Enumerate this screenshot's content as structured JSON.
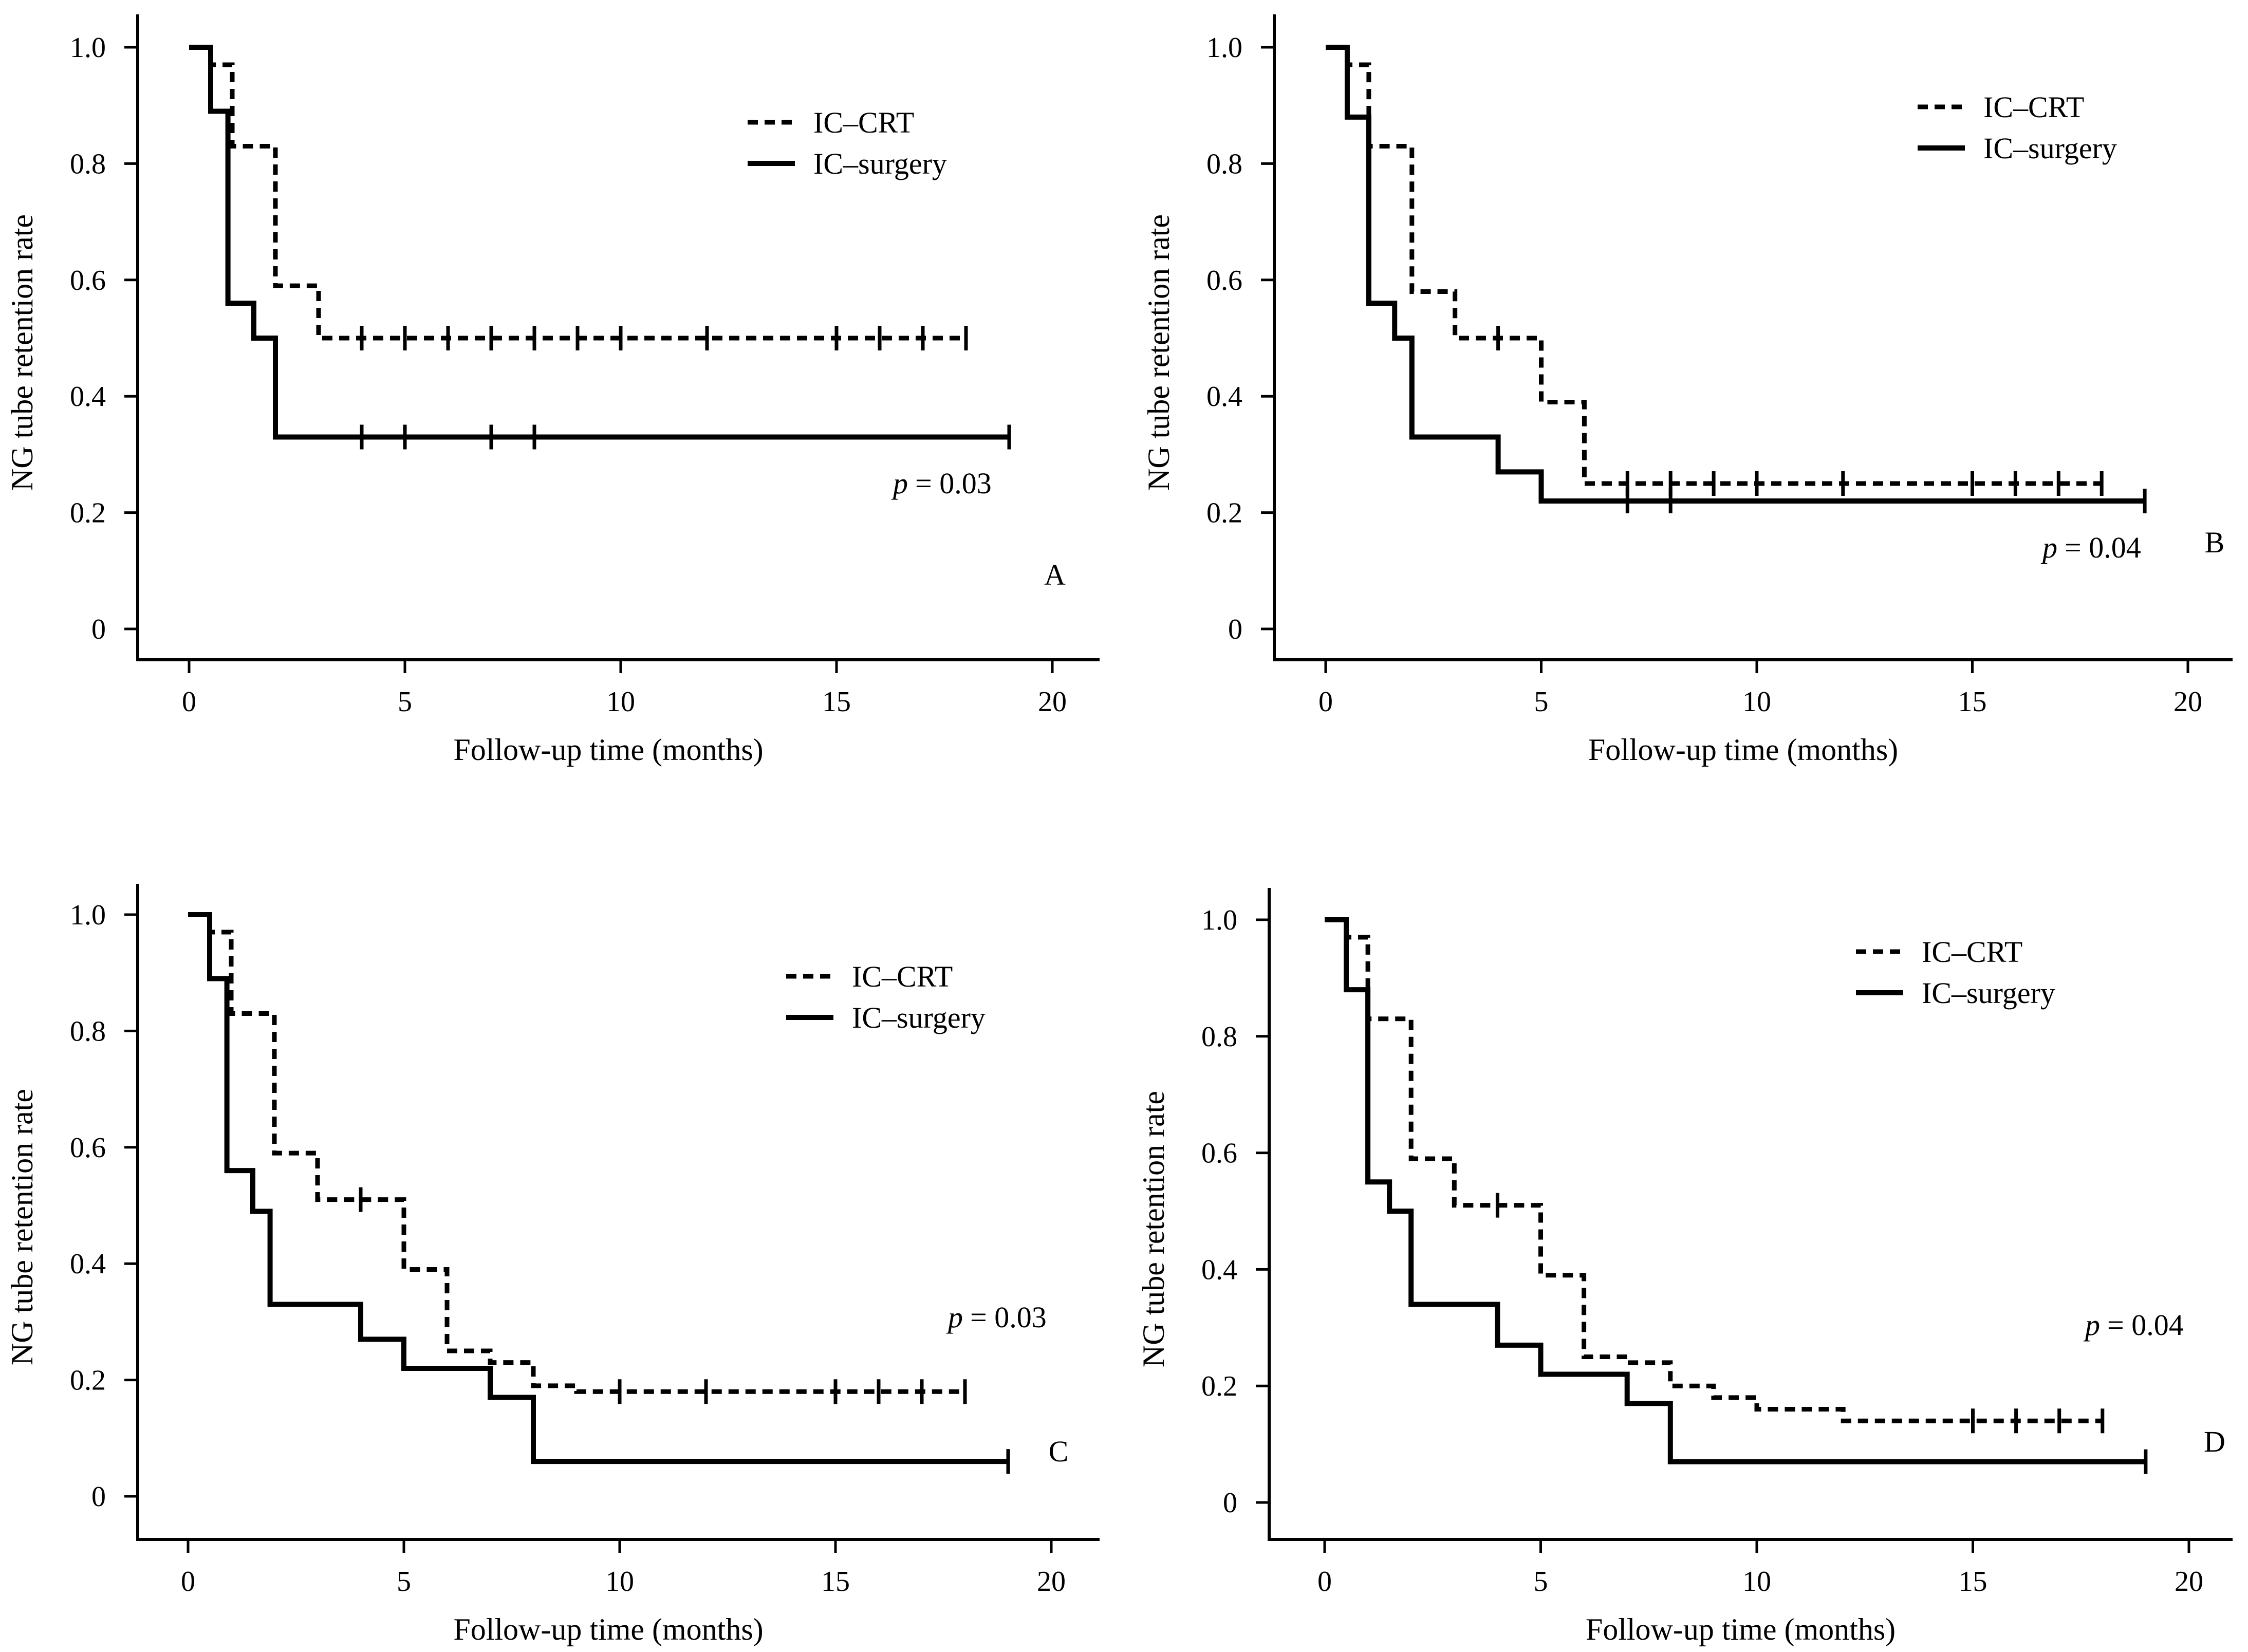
{
  "chart_data": [
    {
      "type": "line",
      "panel_label": "A",
      "xlabel": "Follow-up time (months)",
      "ylabel": "NG tube retention rate",
      "xlim": [
        -1,
        21
      ],
      "ylim": [
        -0.05,
        1.05
      ],
      "xticks": [
        "0",
        "5",
        "10",
        "15",
        "20"
      ],
      "yticks": [
        "0",
        "0.2",
        "0.4",
        "0.6",
        "0.8",
        "1.0"
      ],
      "p_symbol": "p",
      "p_value": "= 0.03",
      "series": [
        {
          "name": "IC–CRT",
          "style": "dashed",
          "steps": [
            [
              0,
              1.0
            ],
            [
              0.5,
              0.97
            ],
            [
              1,
              0.83
            ],
            [
              2,
              0.59
            ],
            [
              3,
              0.5
            ],
            [
              18,
              0.5
            ]
          ],
          "censors": [
            4,
            5,
            6,
            7,
            8,
            9,
            10,
            12,
            15,
            16,
            17,
            18
          ]
        },
        {
          "name": "IC–surgery",
          "style": "solid",
          "steps": [
            [
              0,
              1.0
            ],
            [
              0.5,
              0.89
            ],
            [
              0.9,
              0.56
            ],
            [
              1.5,
              0.5
            ],
            [
              2,
              0.33
            ],
            [
              19,
              0.33
            ]
          ],
          "censors": [
            4,
            5,
            7,
            8,
            19
          ]
        }
      ]
    },
    {
      "type": "line",
      "panel_label": "B",
      "xlabel": "Follow-up time (months)",
      "ylabel": "NG tube retention rate",
      "xlim": [
        -1,
        21
      ],
      "ylim": [
        -0.05,
        1.05
      ],
      "xticks": [
        "0",
        "5",
        "10",
        "15",
        "20"
      ],
      "yticks": [
        "0",
        "0.2",
        "0.4",
        "0.6",
        "0.8",
        "1.0"
      ],
      "p_symbol": "p",
      "p_value": "= 0.04",
      "series": [
        {
          "name": "IC–CRT",
          "style": "dashed",
          "steps": [
            [
              0,
              1.0
            ],
            [
              0.5,
              0.97
            ],
            [
              1,
              0.83
            ],
            [
              2,
              0.58
            ],
            [
              3,
              0.5
            ],
            [
              5,
              0.39
            ],
            [
              6,
              0.25
            ],
            [
              18,
              0.25
            ]
          ],
          "censors": [
            4,
            7,
            8,
            9,
            10,
            12,
            15,
            16,
            17,
            18
          ]
        },
        {
          "name": "IC–surgery",
          "style": "solid",
          "steps": [
            [
              0,
              1.0
            ],
            [
              0.5,
              0.88
            ],
            [
              1,
              0.56
            ],
            [
              1.6,
              0.5
            ],
            [
              2,
              0.33
            ],
            [
              4,
              0.27
            ],
            [
              5,
              0.22
            ],
            [
              19,
              0.22
            ]
          ],
          "censors": [
            7,
            8,
            19
          ]
        }
      ]
    },
    {
      "type": "line",
      "panel_label": "C",
      "xlabel": "Follow-up time (months)",
      "ylabel": "NG tube retention rate",
      "xlim": [
        -1,
        21
      ],
      "ylim": [
        -0.05,
        1.05
      ],
      "xticks": [
        "0",
        "5",
        "10",
        "15",
        "20"
      ],
      "yticks": [
        "0",
        "0.2",
        "0.4",
        "0.6",
        "0.8",
        "1.0"
      ],
      "p_symbol": "p",
      "p_value": "= 0.03",
      "series": [
        {
          "name": "IC–CRT",
          "style": "dashed",
          "steps": [
            [
              0,
              1.0
            ],
            [
              0.5,
              0.97
            ],
            [
              1,
              0.83
            ],
            [
              2,
              0.59
            ],
            [
              3,
              0.51
            ],
            [
              5,
              0.39
            ],
            [
              6,
              0.25
            ],
            [
              7,
              0.23
            ],
            [
              8,
              0.19
            ],
            [
              9,
              0.18
            ],
            [
              18,
              0.18
            ]
          ],
          "censors": [
            4,
            10,
            12,
            15,
            16,
            17,
            18
          ]
        },
        {
          "name": "IC–surgery",
          "style": "solid",
          "steps": [
            [
              0,
              1.0
            ],
            [
              0.5,
              0.89
            ],
            [
              0.9,
              0.56
            ],
            [
              1.5,
              0.49
            ],
            [
              1.9,
              0.33
            ],
            [
              4,
              0.27
            ],
            [
              5,
              0.22
            ],
            [
              7,
              0.17
            ],
            [
              8,
              0.06
            ],
            [
              19,
              0.06
            ]
          ],
          "censors": [
            19
          ]
        }
      ]
    },
    {
      "type": "line",
      "panel_label": "D",
      "xlabel": "Follow-up time (months)",
      "ylabel": "NG tube retention rate",
      "xlim": [
        -1,
        21
      ],
      "ylim": [
        -0.05,
        1.05
      ],
      "xticks": [
        "0",
        "5",
        "10",
        "15",
        "20"
      ],
      "yticks": [
        "0",
        "0.2",
        "0.4",
        "0.6",
        "0.8",
        "1.0"
      ],
      "p_symbol": "p",
      "p_value": "= 0.04",
      "series": [
        {
          "name": "IC–CRT",
          "style": "dashed",
          "steps": [
            [
              0,
              1.0
            ],
            [
              0.5,
              0.97
            ],
            [
              1,
              0.83
            ],
            [
              2,
              0.59
            ],
            [
              3,
              0.51
            ],
            [
              5,
              0.39
            ],
            [
              6,
              0.25
            ],
            [
              7,
              0.24
            ],
            [
              8,
              0.2
            ],
            [
              9,
              0.18
            ],
            [
              10,
              0.16
            ],
            [
              12,
              0.14
            ],
            [
              18,
              0.14
            ]
          ],
          "censors": [
            4,
            15,
            16,
            17,
            18
          ]
        },
        {
          "name": "IC–surgery",
          "style": "solid",
          "steps": [
            [
              0,
              1.0
            ],
            [
              0.5,
              0.88
            ],
            [
              1,
              0.55
            ],
            [
              1.5,
              0.5
            ],
            [
              2,
              0.34
            ],
            [
              4,
              0.27
            ],
            [
              5,
              0.22
            ],
            [
              7,
              0.17
            ],
            [
              8,
              0.07
            ],
            [
              19,
              0.07
            ]
          ],
          "censors": [
            19
          ]
        }
      ]
    }
  ]
}
